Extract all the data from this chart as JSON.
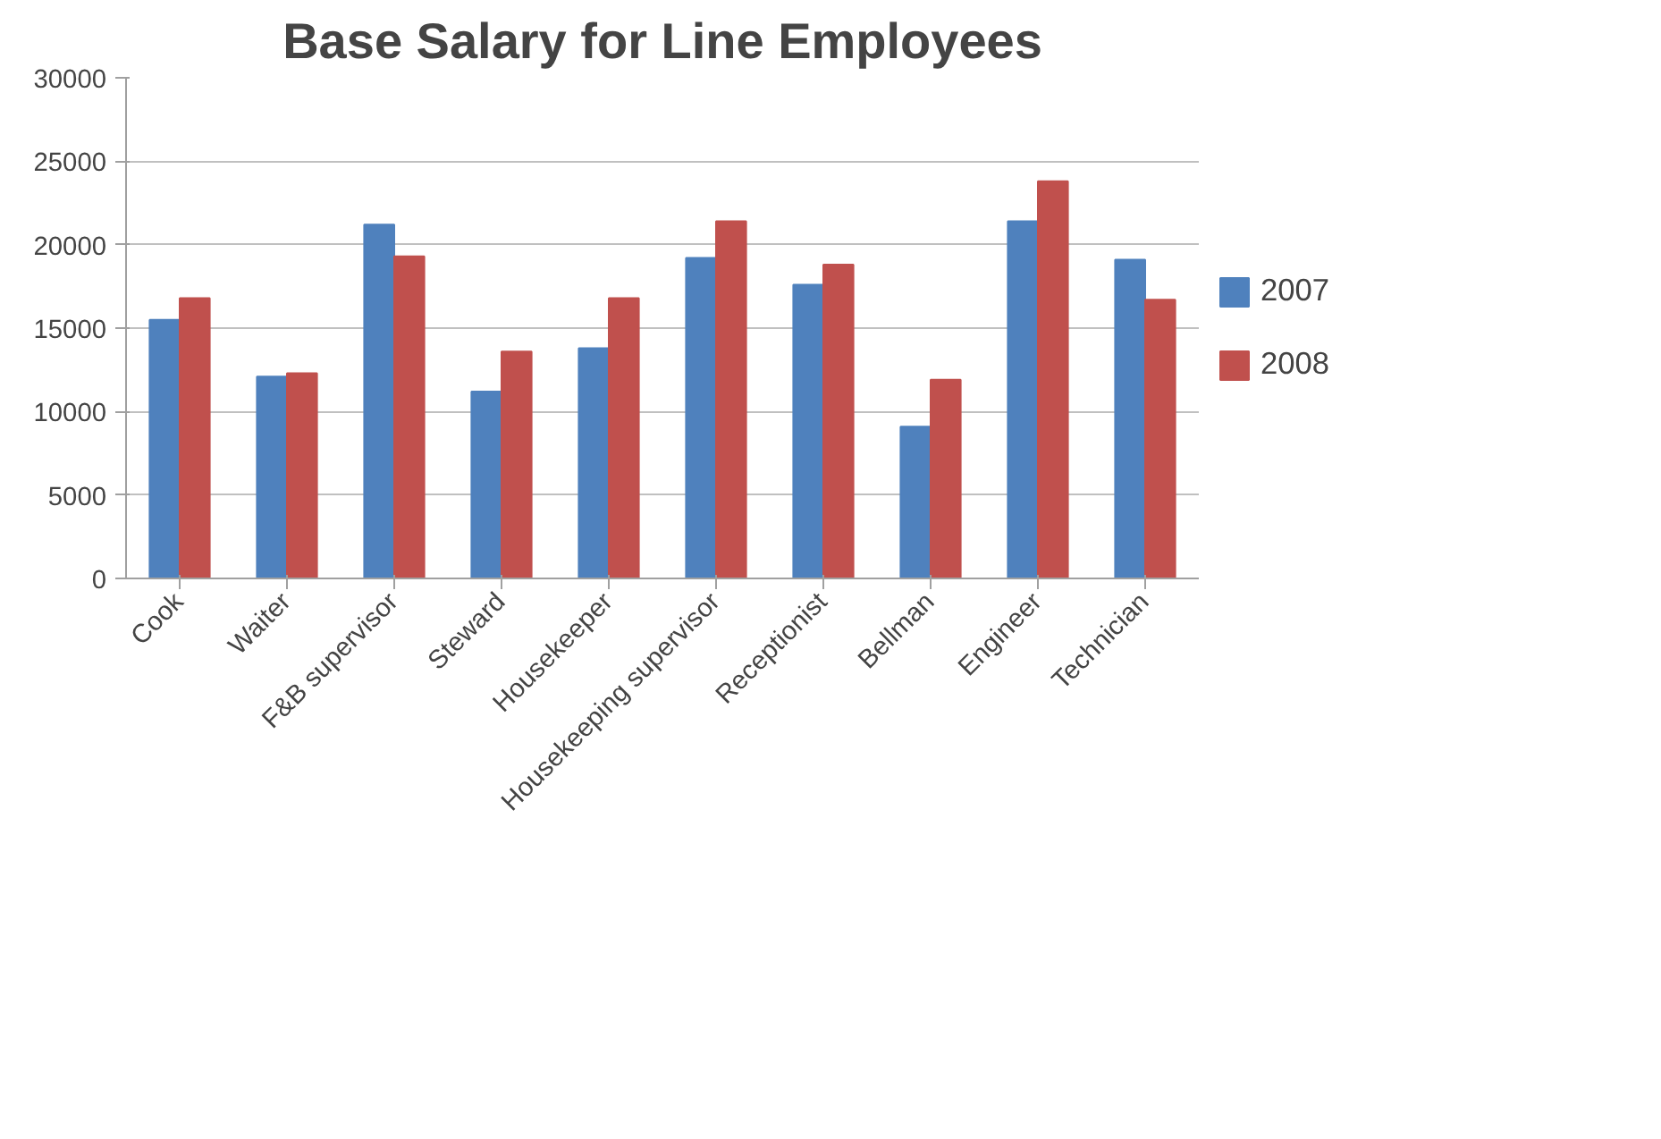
{
  "chart_data": {
    "type": "bar",
    "title": "Base Salary for Line Employees",
    "categories": [
      "Cook",
      "Waiter",
      "F&B supervisor",
      "Steward",
      "Housekeeper",
      "Housekeeping supervisor",
      "Receptionist",
      "Bellman",
      "Engineer",
      "Technician"
    ],
    "series": [
      {
        "name": "2007",
        "color": "#4f81bd",
        "values": [
          15500,
          12100,
          21200,
          11200,
          13800,
          19200,
          17600,
          9100,
          21400,
          19100
        ]
      },
      {
        "name": "2008",
        "color": "#c0504d",
        "values": [
          16800,
          12300,
          19300,
          13600,
          16800,
          21400,
          18800,
          11900,
          23800,
          16700
        ]
      }
    ],
    "ylim": [
      0,
      30000
    ],
    "yticks": [
      0,
      5000,
      10000,
      15000,
      20000,
      25000,
      30000
    ],
    "grid": "y",
    "legend": "right"
  }
}
